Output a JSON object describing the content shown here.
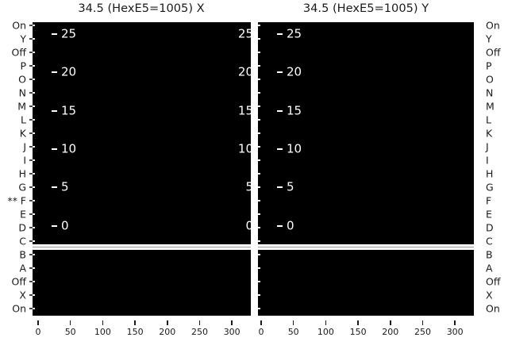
{
  "titles": {
    "left": "34.5 (HexE5=1005) X",
    "right": "34.5 (HexE5=1005) Y"
  },
  "row_labels_top_to_bottom": [
    "On",
    "Y",
    "Off",
    "P",
    "O",
    "N",
    "M",
    "L",
    "K",
    "J",
    "I",
    "H",
    "G",
    "F",
    "E",
    "D",
    "C",
    "B",
    "A",
    "Off",
    "X",
    "On"
  ],
  "row_marker": {
    "text": "**",
    "row_label": "F",
    "row_index": 13,
    "side": "left"
  },
  "inner_scale_values_top_to_bottom": [
    "25",
    "20",
    "15",
    "10",
    "5",
    "0"
  ],
  "x_tick_labels": [
    "0",
    "50",
    "100",
    "150",
    "200",
    "250",
    "300"
  ],
  "colors": {
    "figure_bg": "#ffffff",
    "panel_bg": "#000000",
    "inner_tick": "#ffffff",
    "text": "#1a1a1a",
    "separator_band": "#ffffff",
    "separator_line": "#999999"
  },
  "chart_data": [
    {
      "type": "heatmap",
      "title": "34.5 (HexE5=1005) X",
      "x_ticks": [
        0,
        50,
        100,
        150,
        200,
        250,
        300
      ],
      "xlim": [
        0,
        330
      ],
      "y_categories_top_to_bottom": [
        "On",
        "Y",
        "Off",
        "P",
        "O",
        "N",
        "M",
        "L",
        "K",
        "J",
        "I",
        "H",
        "G",
        "F",
        "E",
        "D",
        "C",
        "B",
        "A",
        "Off",
        "X",
        "On"
      ],
      "separator_between_rows": [
        "C",
        "B"
      ],
      "secondary_y_ticks_top_to_bottom": [
        25,
        20,
        15,
        10,
        5,
        0
      ],
      "plot_background": "#000000",
      "grid": false,
      "legend": false,
      "data_points_visible": false,
      "marked_row": "F"
    },
    {
      "type": "heatmap",
      "title": "34.5 (HexE5=1005) Y",
      "x_ticks": [
        0,
        50,
        100,
        150,
        200,
        250,
        300
      ],
      "xlim": [
        0,
        330
      ],
      "y_categories_top_to_bottom": [
        "On",
        "Y",
        "Off",
        "P",
        "O",
        "N",
        "M",
        "L",
        "K",
        "J",
        "I",
        "H",
        "G",
        "F",
        "E",
        "D",
        "C",
        "B",
        "A",
        "Off",
        "X",
        "On"
      ],
      "separator_between_rows": [
        "C",
        "B"
      ],
      "secondary_y_ticks_top_to_bottom": [
        25,
        20,
        15,
        10,
        5,
        0
      ],
      "plot_background": "#000000",
      "grid": false,
      "legend": false,
      "data_points_visible": false
    }
  ]
}
